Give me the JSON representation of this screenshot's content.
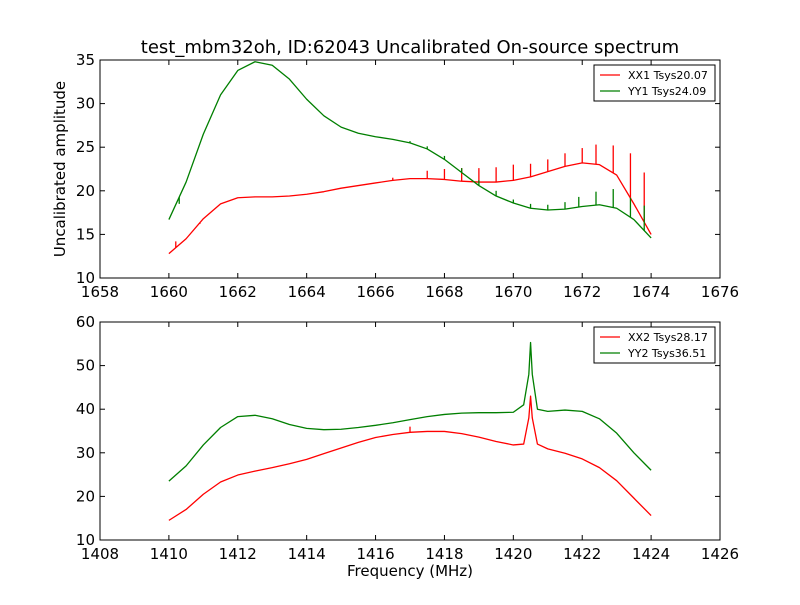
{
  "title": "test_mbm32oh, ID:62043 Uncalibrated On-source spectrum",
  "colors": {
    "red": "#ff0000",
    "green": "#007f00"
  },
  "chart_data": [
    {
      "type": "line",
      "ylabel": "Uncalibrated amplitude",
      "xlabel": "",
      "xlim": [
        1658,
        1676
      ],
      "ylim": [
        10,
        35
      ],
      "xticks": [
        1658,
        1660,
        1662,
        1664,
        1666,
        1668,
        1670,
        1672,
        1674,
        1676
      ],
      "yticks": [
        10,
        15,
        20,
        25,
        30,
        35
      ],
      "legend_position": "top-right",
      "series": [
        {
          "name": "XX1 Tsys20.07",
          "color": "#ff0000",
          "x": [
            1660.0,
            1660.5,
            1661.0,
            1661.5,
            1662.0,
            1662.5,
            1663.0,
            1663.5,
            1664.0,
            1664.5,
            1665.0,
            1665.5,
            1666.0,
            1666.5,
            1667.0,
            1667.5,
            1668.0,
            1668.5,
            1669.0,
            1669.5,
            1670.0,
            1670.5,
            1671.0,
            1671.5,
            1672.0,
            1672.5,
            1673.0,
            1673.5,
            1674.0
          ],
          "y": [
            12.8,
            14.5,
            16.8,
            18.5,
            19.2,
            19.3,
            19.3,
            19.4,
            19.6,
            19.9,
            20.3,
            20.6,
            20.9,
            21.2,
            21.4,
            21.4,
            21.3,
            21.1,
            21.0,
            21.0,
            21.2,
            21.6,
            22.2,
            22.8,
            23.2,
            23.0,
            21.8,
            18.5,
            15.0
          ],
          "spikes": [
            [
              1660.2,
              14.2
            ],
            [
              1660.9,
              16.2
            ],
            [
              1666.5,
              21.5
            ],
            [
              1667.5,
              22.3
            ],
            [
              1668.0,
              22.5
            ],
            [
              1668.5,
              22.6
            ],
            [
              1669.0,
              22.6
            ],
            [
              1669.5,
              22.7
            ],
            [
              1670.0,
              23.0
            ],
            [
              1670.5,
              23.1
            ],
            [
              1671.0,
              23.6
            ],
            [
              1671.5,
              24.3
            ],
            [
              1672.0,
              24.9
            ],
            [
              1672.4,
              25.3
            ],
            [
              1672.9,
              25.2
            ],
            [
              1673.4,
              24.3
            ],
            [
              1673.8,
              22.1
            ]
          ]
        },
        {
          "name": "YY1 Tsys24.09",
          "color": "#007f00",
          "x": [
            1660.0,
            1660.5,
            1661.0,
            1661.5,
            1662.0,
            1662.5,
            1663.0,
            1663.5,
            1664.0,
            1664.5,
            1665.0,
            1665.5,
            1666.0,
            1666.5,
            1667.0,
            1667.5,
            1668.0,
            1668.5,
            1669.0,
            1669.5,
            1670.0,
            1670.5,
            1671.0,
            1671.5,
            1672.0,
            1672.5,
            1673.0,
            1673.5,
            1674.0
          ],
          "y": [
            16.7,
            21.0,
            26.5,
            31.0,
            33.8,
            34.8,
            34.4,
            32.8,
            30.5,
            28.6,
            27.3,
            26.6,
            26.2,
            25.9,
            25.5,
            24.8,
            23.6,
            22.1,
            20.6,
            19.4,
            18.6,
            18.0,
            17.8,
            17.9,
            18.2,
            18.4,
            18.0,
            16.7,
            14.6
          ],
          "spikes": [
            [
              1660.3,
              18.5
            ],
            [
              1667.0,
              25.7
            ],
            [
              1667.5,
              25.1
            ],
            [
              1668.0,
              24.0
            ],
            [
              1668.5,
              22.6
            ],
            [
              1669.0,
              21.2
            ],
            [
              1669.5,
              20.0
            ],
            [
              1670.0,
              19.0
            ],
            [
              1670.5,
              18.5
            ],
            [
              1671.0,
              18.4
            ],
            [
              1671.5,
              18.7
            ],
            [
              1671.9,
              19.3
            ],
            [
              1672.4,
              19.9
            ],
            [
              1672.9,
              20.2
            ],
            [
              1673.4,
              19.2
            ],
            [
              1673.8,
              18.3
            ]
          ]
        }
      ]
    },
    {
      "type": "line",
      "ylabel": "",
      "xlabel": "Frequency (MHz)",
      "xlim": [
        1408,
        1426
      ],
      "ylim": [
        10,
        60
      ],
      "xticks": [
        1408,
        1410,
        1412,
        1414,
        1416,
        1418,
        1420,
        1422,
        1424,
        1426
      ],
      "yticks": [
        10,
        20,
        30,
        40,
        50,
        60
      ],
      "legend_position": "top-right",
      "series": [
        {
          "name": "XX2 Tsys28.17",
          "color": "#ff0000",
          "x": [
            1410.0,
            1410.5,
            1411.0,
            1411.5,
            1412.0,
            1412.5,
            1413.0,
            1413.5,
            1414.0,
            1414.5,
            1415.0,
            1415.5,
            1416.0,
            1416.5,
            1417.0,
            1417.5,
            1418.0,
            1418.5,
            1419.0,
            1419.5,
            1420.0,
            1420.3,
            1420.45,
            1420.5,
            1420.55,
            1420.7,
            1421.0,
            1421.5,
            1422.0,
            1422.5,
            1423.0,
            1423.5,
            1424.0
          ],
          "y": [
            14.5,
            17.0,
            20.5,
            23.3,
            24.9,
            25.8,
            26.6,
            27.5,
            28.5,
            29.8,
            31.1,
            32.4,
            33.5,
            34.2,
            34.7,
            34.9,
            34.9,
            34.4,
            33.6,
            32.6,
            31.8,
            32.0,
            38.0,
            43.0,
            38.0,
            32.0,
            30.9,
            29.9,
            28.6,
            26.6,
            23.6,
            19.6,
            15.6
          ],
          "spikes": [
            [
              1417.0,
              36.0
            ]
          ]
        },
        {
          "name": "YY2 Tsys36.51",
          "color": "#007f00",
          "x": [
            1410.0,
            1410.5,
            1411.0,
            1411.5,
            1412.0,
            1412.5,
            1413.0,
            1413.5,
            1414.0,
            1414.5,
            1415.0,
            1415.5,
            1416.0,
            1416.5,
            1417.0,
            1417.5,
            1418.0,
            1418.5,
            1419.0,
            1419.5,
            1420.0,
            1420.3,
            1420.45,
            1420.5,
            1420.55,
            1420.7,
            1421.0,
            1421.5,
            1422.0,
            1422.5,
            1423.0,
            1423.5,
            1424.0
          ],
          "y": [
            23.5,
            27.0,
            31.8,
            35.8,
            38.3,
            38.6,
            37.8,
            36.5,
            35.6,
            35.3,
            35.4,
            35.8,
            36.3,
            36.9,
            37.6,
            38.3,
            38.8,
            39.1,
            39.2,
            39.2,
            39.3,
            41.0,
            48.0,
            55.3,
            48.0,
            40.0,
            39.5,
            39.8,
            39.5,
            37.8,
            34.5,
            30.0,
            26.0
          ],
          "spikes": [
            [
              1417.0,
              37.6
            ]
          ]
        }
      ]
    }
  ]
}
